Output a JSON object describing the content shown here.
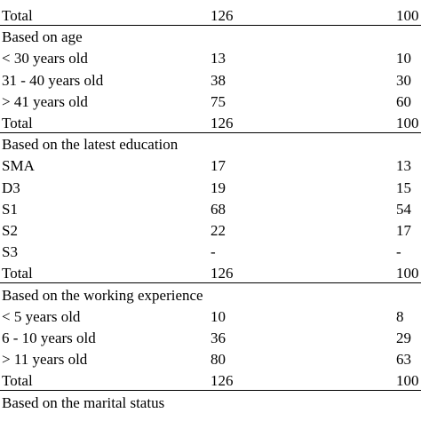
{
  "table": {
    "rows": [
      {
        "label": "Total",
        "n": "126",
        "pct": "100"
      },
      {
        "label": "Based on age",
        "n": "",
        "pct": ""
      },
      {
        "label": "< 30 years old",
        "n": "13",
        "pct": "10"
      },
      {
        "label": "31 - 40 years old",
        "n": "38",
        "pct": "30"
      },
      {
        "label": "> 41 years old",
        "n": "75",
        "pct": "60"
      },
      {
        "label": "Total",
        "n": "126",
        "pct": "100"
      },
      {
        "label": "Based on the latest education",
        "n": "",
        "pct": ""
      },
      {
        "label": "SMA",
        "n": "17",
        "pct": "13"
      },
      {
        "label": "D3",
        "n": "19",
        "pct": "15"
      },
      {
        "label": "S1",
        "n": "68",
        "pct": "54"
      },
      {
        "label": "S2",
        "n": "22",
        "pct": "17"
      },
      {
        "label": "S3",
        "n": "-",
        "pct": "-"
      },
      {
        "label": "Total",
        "n": "126",
        "pct": "100"
      },
      {
        "label": "Based on the working experience",
        "n": "",
        "pct": ""
      },
      {
        "label": "< 5 years old",
        "n": "10",
        "pct": "8"
      },
      {
        "label": "6 - 10 years old",
        "n": "36",
        "pct": "29"
      },
      {
        "label": "> 11 years old",
        "n": "80",
        "pct": "63"
      },
      {
        "label": "Total",
        "n": "126",
        "pct": "100"
      },
      {
        "label": "Based on the marital status",
        "n": "",
        "pct": ""
      }
    ]
  }
}
